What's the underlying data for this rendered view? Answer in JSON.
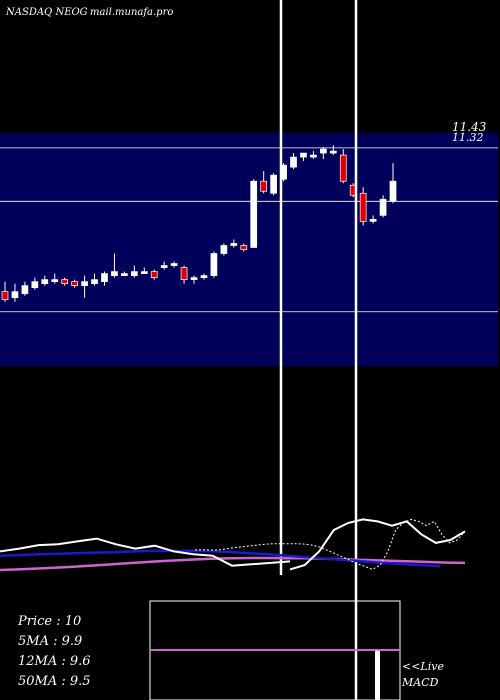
{
  "header": {
    "symbol_text": "NASDAQ NEOG",
    "site_text": "mail.munafa.pro"
  },
  "price_axis": {
    "top_label": "11.43",
    "top_label_overlap": "11.32"
  },
  "stats": [
    {
      "label": "Price",
      "value": "10"
    },
    {
      "label": "5MA",
      "value": "9.9"
    },
    {
      "label": "12MA",
      "value": "9.6"
    },
    {
      "label": "50MA",
      "value": "9.5"
    }
  ],
  "live_label": "<<Live",
  "macd_label": "MACD",
  "colors": {
    "background": "#000000",
    "price_panel": "#00005a",
    "up_candle": "#ffffff",
    "down_candle": "#dd0000",
    "ma_short": "#ffffff",
    "ma_mid": "#1a1acc",
    "ma_long": "#cc66cc"
  },
  "chart_data": {
    "type": "candlestick",
    "ylim": [
      6.0,
      11.8
    ],
    "gridlines": [
      11.43,
      10.1,
      7.35
    ],
    "candles": [
      {
        "o": 7.85,
        "h": 8.1,
        "l": 7.6,
        "c": 7.65
      },
      {
        "o": 7.7,
        "h": 8.05,
        "l": 7.6,
        "c": 7.85
      },
      {
        "o": 7.8,
        "h": 8.1,
        "l": 7.75,
        "c": 8.0
      },
      {
        "o": 7.95,
        "h": 8.2,
        "l": 7.9,
        "c": 8.1
      },
      {
        "o": 8.05,
        "h": 8.25,
        "l": 8.0,
        "c": 8.15
      },
      {
        "o": 8.1,
        "h": 8.3,
        "l": 8.05,
        "c": 8.15
      },
      {
        "o": 8.15,
        "h": 8.2,
        "l": 8.0,
        "c": 8.05
      },
      {
        "o": 8.1,
        "h": 8.15,
        "l": 7.95,
        "c": 8.0
      },
      {
        "o": 8.0,
        "h": 8.25,
        "l": 7.7,
        "c": 8.1
      },
      {
        "o": 8.05,
        "h": 8.3,
        "l": 8.0,
        "c": 8.15
      },
      {
        "o": 8.1,
        "h": 8.35,
        "l": 8.0,
        "c": 8.3
      },
      {
        "o": 8.25,
        "h": 8.8,
        "l": 8.2,
        "c": 8.35
      },
      {
        "o": 8.3,
        "h": 8.35,
        "l": 8.25,
        "c": 8.3
      },
      {
        "o": 8.25,
        "h": 8.5,
        "l": 8.2,
        "c": 8.35
      },
      {
        "o": 8.35,
        "h": 8.45,
        "l": 8.3,
        "c": 8.35
      },
      {
        "o": 8.35,
        "h": 8.4,
        "l": 8.15,
        "c": 8.2
      },
      {
        "o": 8.45,
        "h": 8.6,
        "l": 8.4,
        "c": 8.5
      },
      {
        "o": 8.5,
        "h": 8.6,
        "l": 8.45,
        "c": 8.55
      },
      {
        "o": 8.45,
        "h": 8.5,
        "l": 8.05,
        "c": 8.15
      },
      {
        "o": 8.15,
        "h": 8.25,
        "l": 8.05,
        "c": 8.2
      },
      {
        "o": 8.2,
        "h": 8.3,
        "l": 8.15,
        "c": 8.25
      },
      {
        "o": 8.25,
        "h": 8.85,
        "l": 8.2,
        "c": 8.8
      },
      {
        "o": 8.8,
        "h": 9.05,
        "l": 8.75,
        "c": 9.0
      },
      {
        "o": 9.05,
        "h": 9.15,
        "l": 8.95,
        "c": 9.05
      },
      {
        "o": 9.0,
        "h": 9.05,
        "l": 8.85,
        "c": 8.9
      },
      {
        "o": 8.95,
        "h": 10.65,
        "l": 8.95,
        "c": 10.6
      },
      {
        "o": 10.6,
        "h": 10.85,
        "l": 10.3,
        "c": 10.35
      },
      {
        "o": 10.3,
        "h": 10.8,
        "l": 10.25,
        "c": 10.75
      },
      {
        "o": 10.65,
        "h": 11.05,
        "l": 10.6,
        "c": 11.0
      },
      {
        "o": 10.95,
        "h": 11.3,
        "l": 10.9,
        "c": 11.2
      },
      {
        "o": 11.2,
        "h": 11.3,
        "l": 11.1,
        "c": 11.3
      },
      {
        "o": 11.25,
        "h": 11.35,
        "l": 11.15,
        "c": 11.25
      },
      {
        "o": 11.3,
        "h": 11.45,
        "l": 11.15,
        "c": 11.4
      },
      {
        "o": 11.35,
        "h": 11.5,
        "l": 11.25,
        "c": 11.35
      },
      {
        "o": 11.25,
        "h": 11.4,
        "l": 10.55,
        "c": 10.6
      },
      {
        "o": 10.5,
        "h": 10.55,
        "l": 10.2,
        "c": 10.25
      },
      {
        "o": 10.3,
        "h": 10.45,
        "l": 9.5,
        "c": 9.6
      },
      {
        "o": 9.65,
        "h": 9.75,
        "l": 9.55,
        "c": 9.65
      },
      {
        "o": 9.75,
        "h": 10.25,
        "l": 9.7,
        "c": 10.15
      },
      {
        "o": 10.1,
        "h": 11.05,
        "l": 10.05,
        "c": 10.6
      }
    ],
    "ma_panel": {
      "ylim": [
        8.0,
        11.5
      ],
      "ma_short": [
        9.75,
        9.76,
        9.75,
        9.75,
        9.79,
        9.83,
        9.86,
        9.89,
        9.92,
        9.95,
        9.97,
        9.97,
        9.97,
        9.97,
        9.96,
        9.93,
        9.87,
        9.76,
        9.64,
        9.52,
        9.4,
        9.27,
        9.18,
        9.07,
        9.22,
        9.7,
        10.45,
        10.7,
        10.82,
        10.75,
        10.6,
        10.75,
        10.3,
        10.0,
        10.1,
        10.4
      ],
      "ma_mid": [
        9.55,
        9.57,
        9.6,
        9.62,
        9.64,
        9.66,
        9.67,
        9.7,
        9.72,
        9.72,
        9.72,
        9.71,
        9.68,
        9.64,
        9.6,
        9.55,
        9.5,
        9.45,
        9.4,
        9.35,
        9.3,
        9.26,
        9.22,
        9.18
      ],
      "ma_long": [
        9.05,
        9.07,
        9.1,
        9.13,
        9.16,
        9.2,
        9.24,
        9.28,
        9.32,
        9.36,
        9.39,
        9.42,
        9.45,
        9.46,
        9.47,
        9.47,
        9.46,
        9.46,
        9.45,
        9.43,
        9.41,
        9.39,
        9.37,
        9.35,
        9.33,
        9.31,
        9.3
      ],
      "ma_bottom": [
        9.7,
        9.8,
        9.92,
        9.95,
        10.05,
        10.15,
        9.95,
        9.8,
        9.9,
        9.7,
        9.6,
        9.55,
        9.2,
        9.25,
        9.3,
        9.35
      ]
    }
  }
}
